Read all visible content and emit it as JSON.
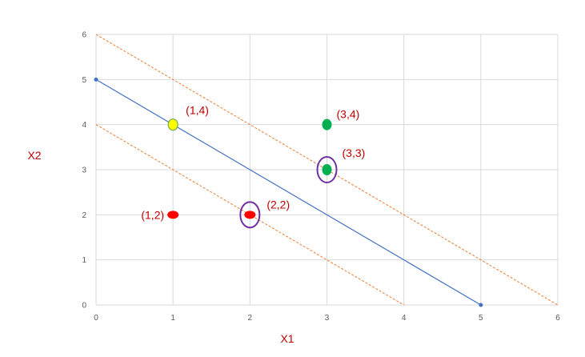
{
  "chart_data": {
    "type": "scatter",
    "xlabel": "X1",
    "ylabel": "X2",
    "xlim": [
      0,
      6
    ],
    "ylim": [
      0,
      6
    ],
    "x_ticks": [
      "0",
      "1",
      "2",
      "3",
      "4",
      "5",
      "6"
    ],
    "y_ticks": [
      "0",
      "1",
      "2",
      "3",
      "4",
      "5",
      "6"
    ],
    "grid": true,
    "lines": [
      {
        "x": [
          0,
          5
        ],
        "y": [
          5,
          0
        ],
        "style": "solid",
        "color": "#4472c4",
        "endpoint_markers": true
      },
      {
        "x": [
          0,
          6
        ],
        "y": [
          6,
          0
        ],
        "style": "dashed",
        "color": "#ed7d31"
      },
      {
        "x": [
          0,
          4
        ],
        "y": [
          4,
          0
        ],
        "style": "dashed",
        "color": "#ed7d31"
      }
    ],
    "points": [
      {
        "x": 1,
        "y": 4,
        "label": "(1,4)",
        "color": "#ffff00",
        "outline": "#70ad47",
        "circled": false
      },
      {
        "x": 3,
        "y": 4,
        "label": "(3,4)",
        "color": "#00b050",
        "circled": false
      },
      {
        "x": 3,
        "y": 3,
        "label": "(3,3)",
        "color": "#00b050",
        "circled": true
      },
      {
        "x": 1,
        "y": 2,
        "label": "(1,2)",
        "color": "#ff0000",
        "circled": false
      },
      {
        "x": 2,
        "y": 2,
        "label": "(2,2)",
        "color": "#ff0000",
        "circled": true
      }
    ],
    "circle_color": "#7030a0"
  }
}
